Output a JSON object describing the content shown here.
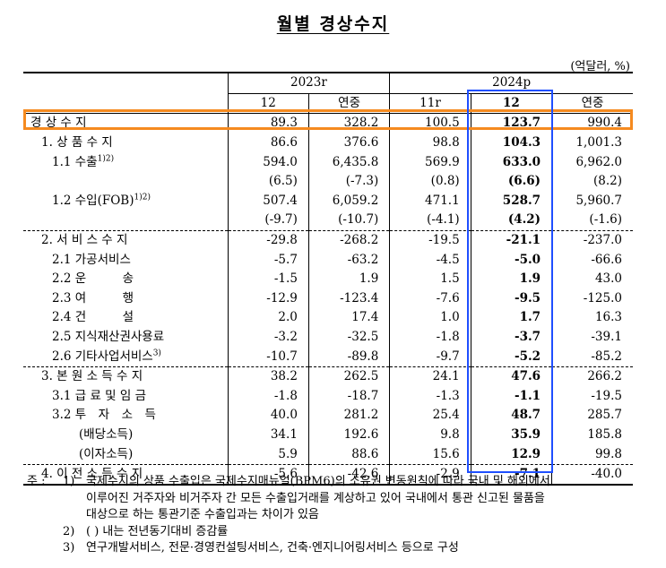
{
  "title": "월별 경상수지",
  "unit": "(억달러, %)",
  "header": {
    "year_2023": "2023r",
    "year_2024": "2024p",
    "cols": [
      "12",
      "연중",
      "11r",
      "12",
      "연중"
    ]
  },
  "rows": [
    {
      "label": "경 상 수 지",
      "sup": "",
      "indent": 8,
      "vals": [
        "89.3",
        "328.2",
        "100.5",
        "123.7",
        "990.4"
      ],
      "group": false
    },
    {
      "label": "1. 상 품 수 지",
      "sup": "",
      "indent": 20,
      "vals": [
        "86.6",
        "376.6",
        "98.8",
        "104.3",
        "1,001.3"
      ],
      "group": false
    },
    {
      "label": "1.1 수출",
      "sup": "1)2)",
      "indent": 32,
      "vals": [
        "594.0",
        "6,435.8",
        "569.9",
        "633.0",
        "6,962.0"
      ],
      "group": false
    },
    {
      "label": "",
      "sup": "",
      "indent": 32,
      "vals": [
        "(6.5)",
        "(-7.3)",
        "(0.8)",
        "(6.6)",
        "(8.2)"
      ],
      "group": false
    },
    {
      "label": "1.2 수입(FOB)",
      "sup": "1)2)",
      "indent": 32,
      "vals": [
        "507.4",
        "6,059.2",
        "471.1",
        "528.7",
        "5,960.7"
      ],
      "group": false
    },
    {
      "label": "",
      "sup": "",
      "indent": 32,
      "vals": [
        "(-9.7)",
        "(-10.7)",
        "(-4.1)",
        "(4.2)",
        "(-1.6)"
      ],
      "group": false
    },
    {
      "label": "2. 서 비 스 수 지",
      "sup": "",
      "indent": 20,
      "vals": [
        "-29.8",
        "-268.2",
        "-19.5",
        "-21.1",
        "-237.0"
      ],
      "group": true
    },
    {
      "label": "2.1 가공서비스",
      "sup": "",
      "indent": 32,
      "vals": [
        "-5.7",
        "-63.2",
        "-4.5",
        "-5.0",
        "-66.6"
      ],
      "group": false
    },
    {
      "label": "2.2 운　　　송",
      "sup": "",
      "indent": 32,
      "vals": [
        "-1.5",
        "1.9",
        "1.5",
        "1.9",
        "43.0"
      ],
      "group": false
    },
    {
      "label": "2.3 여　　　행",
      "sup": "",
      "indent": 32,
      "vals": [
        "-12.9",
        "-123.4",
        "-7.6",
        "-9.5",
        "-125.0"
      ],
      "group": false
    },
    {
      "label": "2.4 건　　　설",
      "sup": "",
      "indent": 32,
      "vals": [
        "2.0",
        "17.4",
        "1.0",
        "1.7",
        "16.3"
      ],
      "group": false
    },
    {
      "label": "2.5 지식재산권사용료",
      "sup": "",
      "indent": 32,
      "vals": [
        "-3.2",
        "-32.5",
        "-1.8",
        "-3.7",
        "-39.1"
      ],
      "group": false
    },
    {
      "label": "2.6 기타사업서비스",
      "sup": "3)",
      "indent": 32,
      "vals": [
        "-10.7",
        "-89.8",
        "-9.7",
        "-5.2",
        "-85.2"
      ],
      "group": false
    },
    {
      "label": "3. 본 원 소 득 수 지",
      "sup": "",
      "indent": 20,
      "vals": [
        "38.2",
        "262.5",
        "24.1",
        "47.6",
        "266.2"
      ],
      "group": true
    },
    {
      "label": "3.1 급 료 및 임 금",
      "sup": "",
      "indent": 32,
      "vals": [
        "-1.8",
        "-18.7",
        "-1.3",
        "-1.1",
        "-19.5"
      ],
      "group": false
    },
    {
      "label": "3.2 투　자　소　득",
      "sup": "",
      "indent": 32,
      "vals": [
        "40.0",
        "281.2",
        "25.4",
        "48.7",
        "285.7"
      ],
      "group": false
    },
    {
      "label": "(배당소득)",
      "sup": "",
      "indent": 62,
      "vals": [
        "34.1",
        "192.6",
        "9.8",
        "35.9",
        "185.8"
      ],
      "group": false
    },
    {
      "label": "(이자소득)",
      "sup": "",
      "indent": 62,
      "vals": [
        "5.9",
        "88.6",
        "15.6",
        "12.9",
        "99.8"
      ],
      "group": false
    },
    {
      "label": "4. 이 전 소 득 수 지",
      "sup": "",
      "indent": 20,
      "vals": [
        "-5.6",
        "-42.6",
        "-2.9",
        "-7.1",
        "-40.0"
      ],
      "group": true
    }
  ],
  "notes": {
    "prefix": "주 :",
    "n1_mark": "1)",
    "n1_line1": "국제수지의 상품 수출입은 국제수지매뉴얼(BPM6)의 소유권 변동원칙에 따라 국내 및 해외에서",
    "n1_line2": "이루어진 거주자와 비거주자 간 모든 수출입거래를 계상하고 있어 국내에서 통관 신고된 물품을",
    "n1_line3": "대상으로 하는 통관기준 수출입과는 차이가 있음",
    "n2_mark": "2)",
    "n2_text": "(  ) 내는 전년동기대비 증감률",
    "n3_mark": "3)",
    "n3_text": "연구개발서비스, 전문·경영컨설팅서비스, 건축·엔지니어링서비스 등으로 구성"
  },
  "colors": {
    "highlight_row": "#f58a1f",
    "highlight_col": "#1f4fff"
  }
}
